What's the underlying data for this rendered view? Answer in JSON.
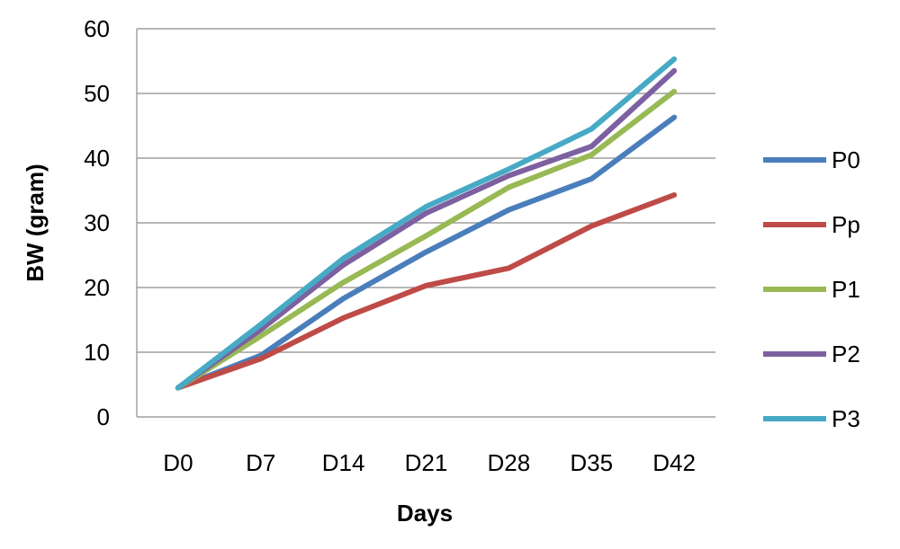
{
  "chart_data": {
    "type": "line",
    "title": "",
    "xlabel": "Days",
    "ylabel": "BW (gram)",
    "categories": [
      "D0",
      "D7",
      "D14",
      "D21",
      "D28",
      "D35",
      "D42"
    ],
    "ylim": [
      0,
      60
    ],
    "yticks": [
      "0",
      "10",
      "20",
      "30",
      "40",
      "50",
      "60"
    ],
    "grid": "horizontal",
    "legend_position": "right",
    "series": [
      {
        "name": "P0",
        "color": "#4a7ebb",
        "values": [
          4.5,
          9.5,
          18.3,
          25.5,
          32.0,
          36.8,
          46.3
        ]
      },
      {
        "name": "Pp",
        "color": "#be4b48",
        "values": [
          4.5,
          9.0,
          15.3,
          20.3,
          23.0,
          29.5,
          34.3
        ]
      },
      {
        "name": "P1",
        "color": "#98b954",
        "values": [
          4.5,
          12.5,
          20.8,
          28.0,
          35.5,
          40.5,
          50.3
        ]
      },
      {
        "name": "P2",
        "color": "#7d60a0",
        "values": [
          4.5,
          13.5,
          23.5,
          31.5,
          37.3,
          41.8,
          53.5
        ]
      },
      {
        "name": "P3",
        "color": "#46aac5",
        "values": [
          4.5,
          14.3,
          24.5,
          32.5,
          38.3,
          44.5,
          55.3
        ]
      }
    ]
  }
}
